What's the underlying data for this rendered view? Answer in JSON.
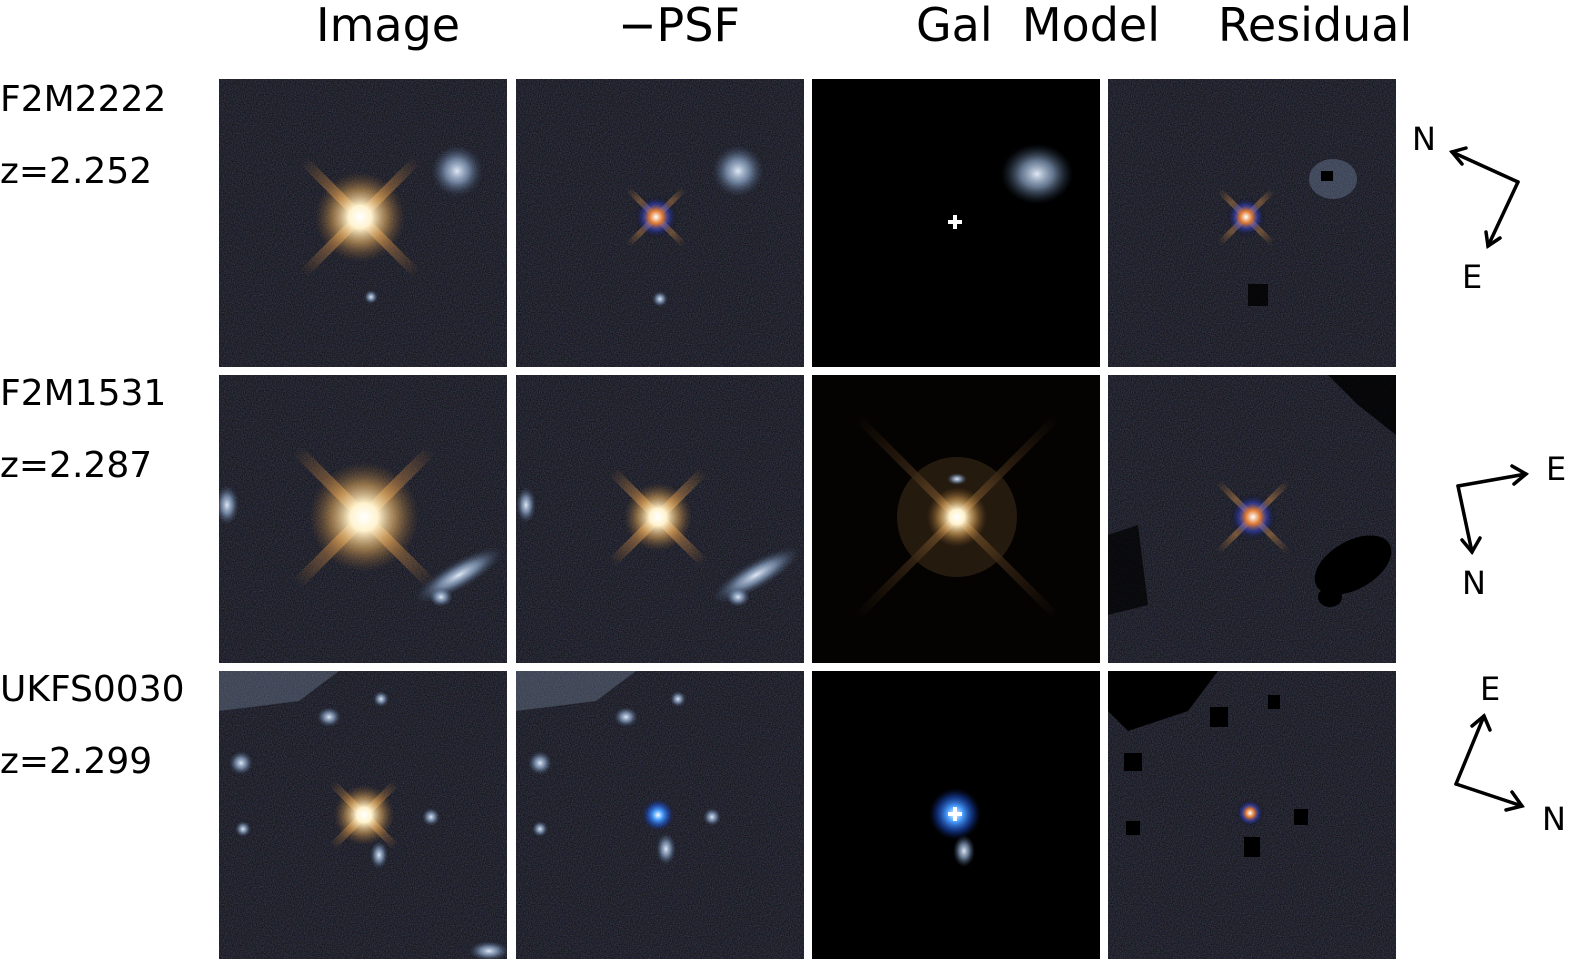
{
  "column_headers": {
    "image": "Image",
    "psf_subtracted": "−PSF",
    "gal_model": "Gal  Model",
    "residual": "Residual"
  },
  "objects": [
    {
      "name": "F2M2222",
      "redshift": "z=2.252",
      "compass": {
        "north": "N",
        "east": "E"
      }
    },
    {
      "name": "F2M1531",
      "redshift": "z=2.287",
      "compass": {
        "north": "N",
        "east": "E"
      }
    },
    {
      "name": "UKFS0030",
      "redshift": "z=2.299",
      "compass": {
        "north": "N",
        "east": "E"
      }
    }
  ],
  "colors": {
    "sky_background": "#05070c",
    "model_background": "#000000",
    "quasar_core": "#fff6dc",
    "diffraction_spike": "#d98a3a",
    "host_galaxy": "#9fb6d6",
    "blue_residual": "#3a6cff"
  }
}
